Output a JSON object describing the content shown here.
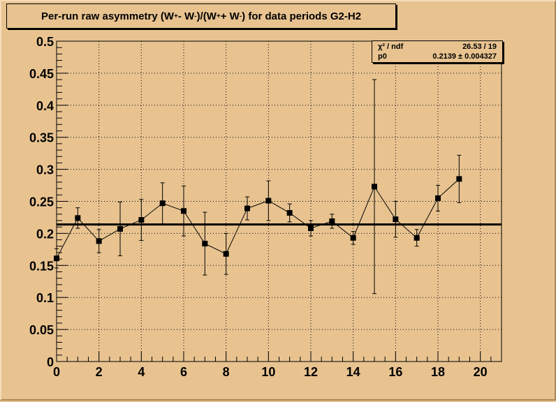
{
  "title": {
    "prefix": "Per-run raw asymmetry (W",
    "sup1": "+",
    "mid1": " - W",
    "sup2": "-",
    "mid2": ")/(W",
    "sup3": "+",
    "mid3": " + W",
    "sup4": "-",
    "suffix": ") for data periods G2-H2"
  },
  "stats": {
    "row1_label": "χ² / ndf",
    "row1_value": "26.53 / 19",
    "row2_label": "p0",
    "row2_value": "0.2139 ± 0.004327"
  },
  "colors": {
    "background": "#e8c390",
    "marker": "#000000",
    "grid": "#000000"
  },
  "chart_data": {
    "type": "scatter",
    "title": "Per-run raw asymmetry (W+ - W-)/(W+ + W-) for data periods G2-H2",
    "xlabel": "",
    "ylabel": "",
    "xlim": [
      0,
      21
    ],
    "ylim": [
      0,
      0.5
    ],
    "x_ticks": [
      0,
      2,
      4,
      6,
      8,
      10,
      12,
      14,
      16,
      18,
      20
    ],
    "x_tick_labels": [
      "0",
      "2",
      "4",
      "6",
      "8",
      "10",
      "12",
      "14",
      "16",
      "18",
      "20"
    ],
    "y_ticks": [
      0,
      0.05,
      0.1,
      0.15,
      0.2,
      0.25,
      0.3,
      0.35,
      0.4,
      0.45,
      0.5
    ],
    "y_tick_labels": [
      "0",
      "0.05",
      "0.1",
      "0.15",
      "0.2",
      "0.25",
      "0.3",
      "0.35",
      "0.4",
      "0.45",
      "0.5"
    ],
    "grid": true,
    "x": [
      0,
      1,
      2,
      3,
      4,
      5,
      6,
      7,
      8,
      9,
      10,
      11,
      12,
      13,
      14,
      15,
      16,
      17,
      18,
      19
    ],
    "y": [
      0.161,
      0.224,
      0.188,
      0.207,
      0.221,
      0.247,
      0.235,
      0.184,
      0.168,
      0.239,
      0.251,
      0.232,
      0.208,
      0.219,
      0.193,
      0.273,
      0.222,
      0.193,
      0.255,
      0.285
    ],
    "yerr": [
      0.015,
      0.016,
      0.018,
      0.042,
      0.032,
      0.032,
      0.039,
      0.049,
      0.032,
      0.018,
      0.031,
      0.014,
      0.012,
      0.011,
      0.01,
      0.167,
      0.028,
      0.013,
      0.02,
      0.037
    ],
    "fit": {
      "name": "p0",
      "value": 0.2139,
      "error": 0.004327,
      "chi2": 26.53,
      "ndf": 19
    }
  }
}
